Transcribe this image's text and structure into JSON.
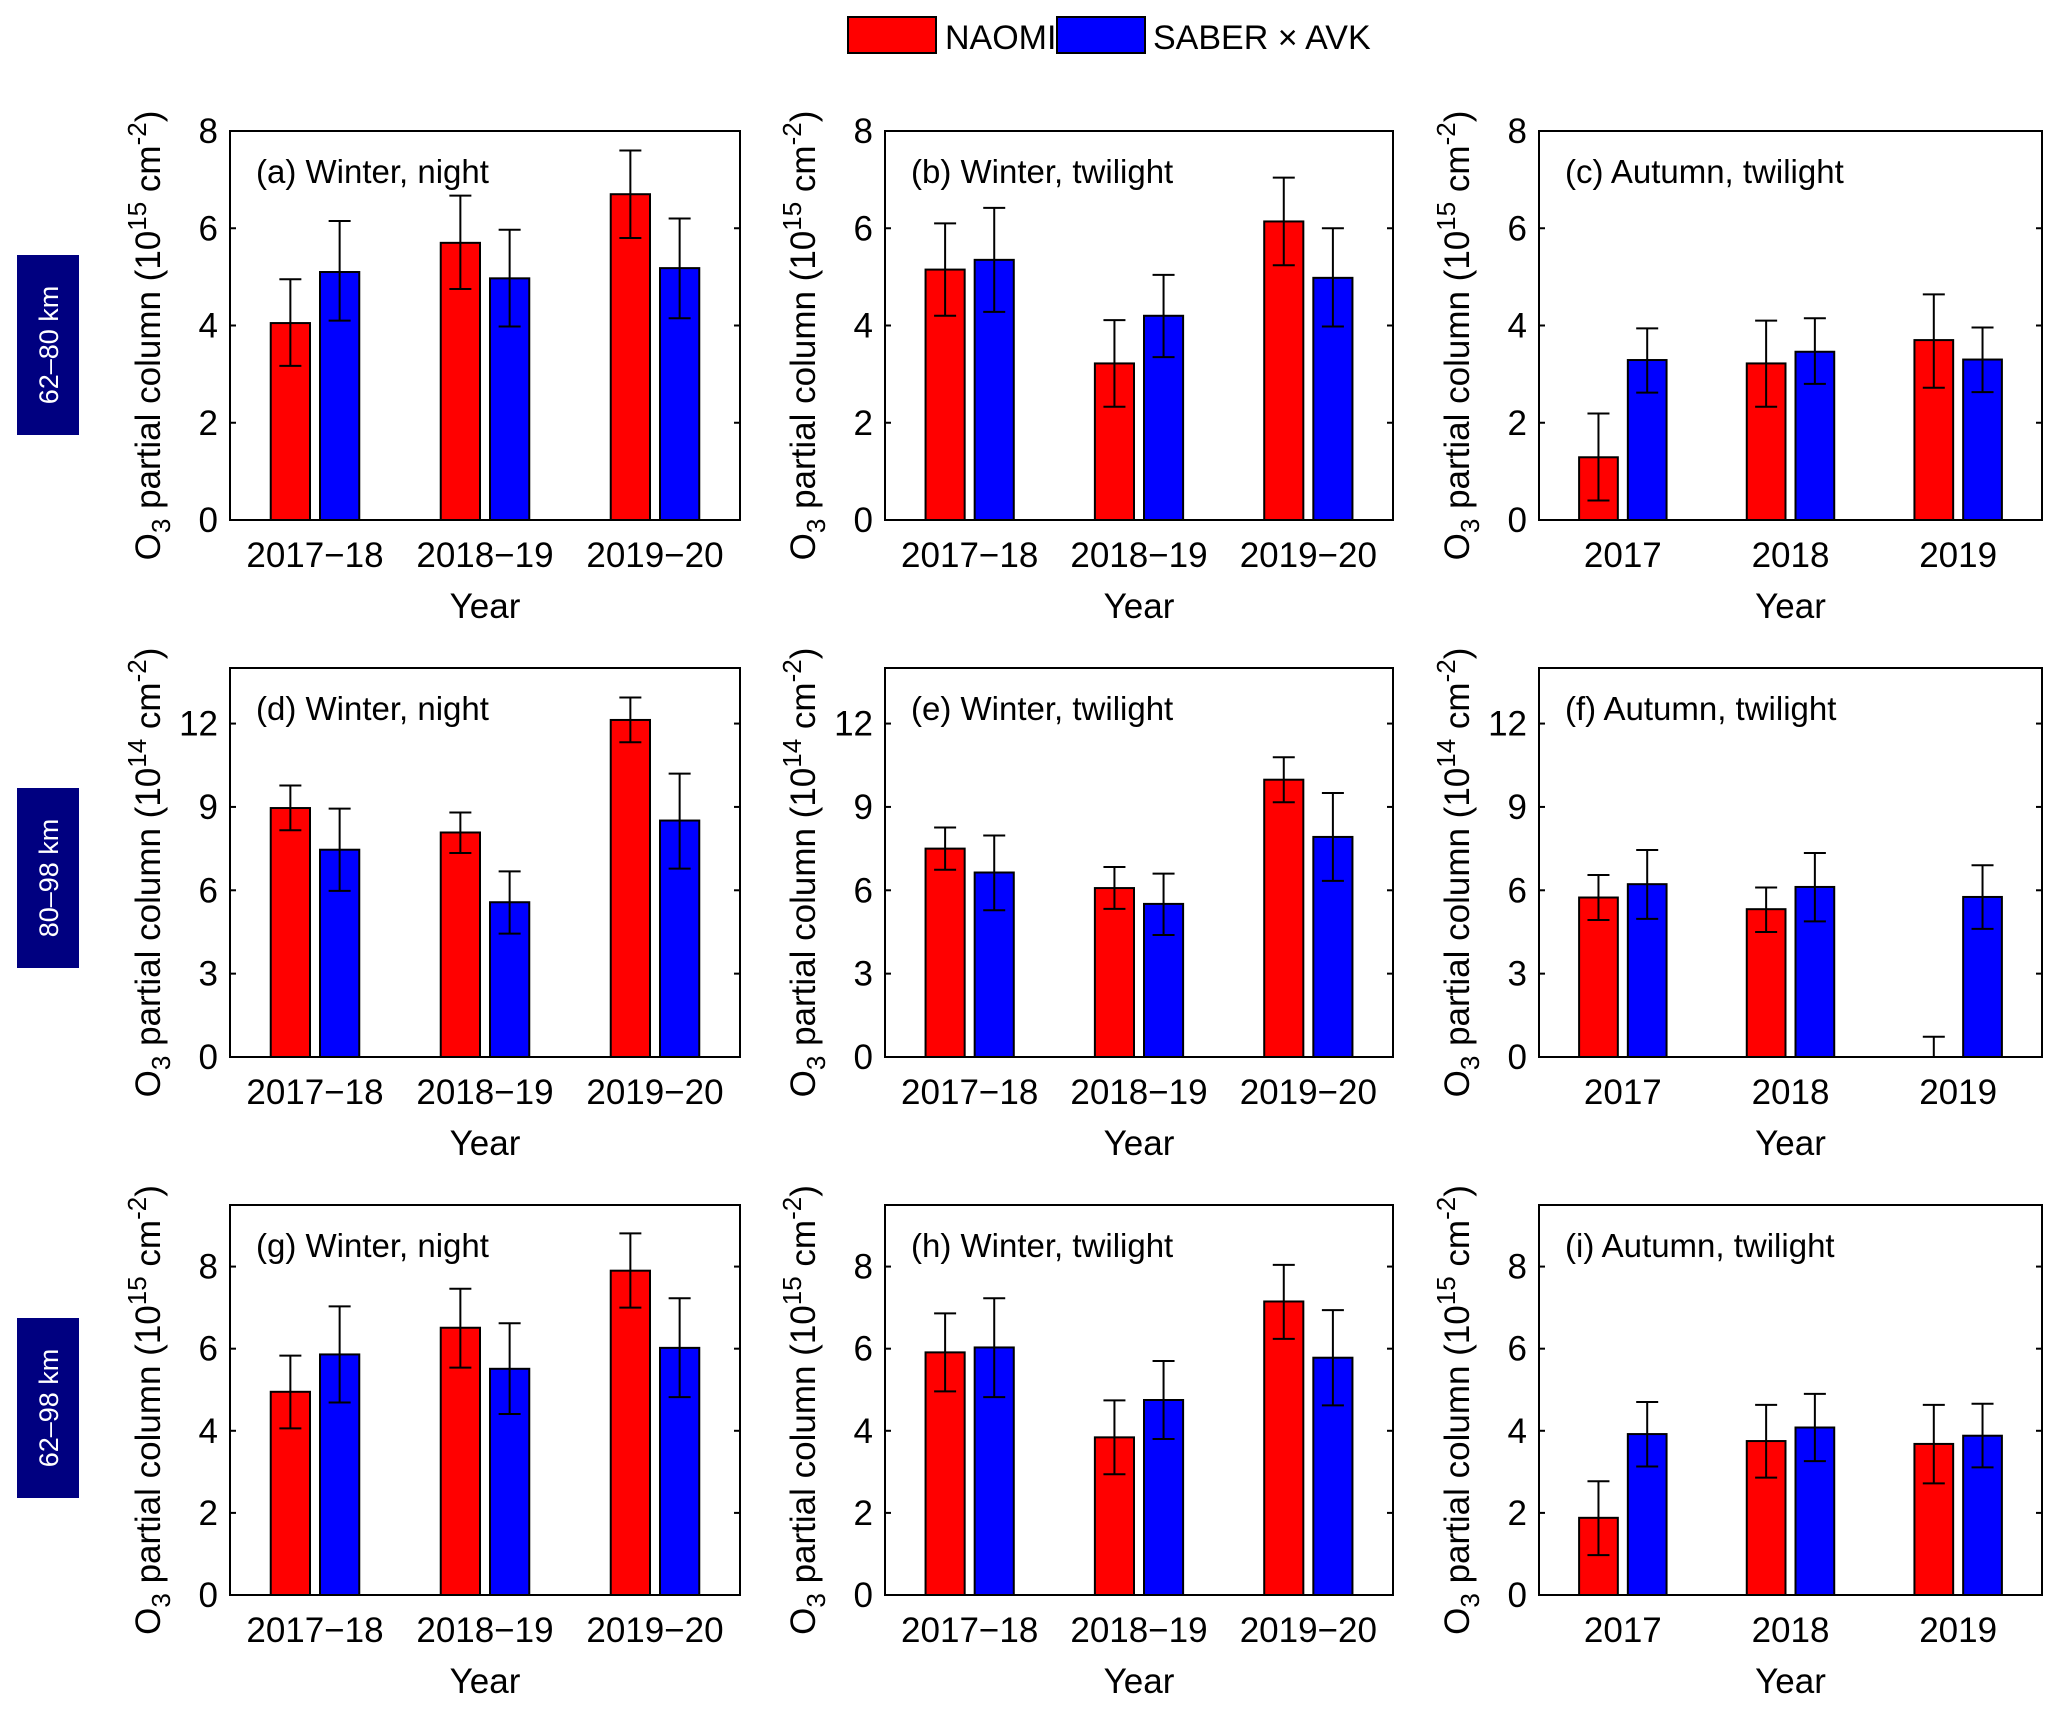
{
  "legend": {
    "items": [
      {
        "name": "NAOMI",
        "color": "#ff0000"
      },
      {
        "name": "SABER × AVK",
        "color": "#0000ff"
      }
    ]
  },
  "row_labels": [
    "62–80 km",
    "80–98 km",
    "62–98 km"
  ],
  "row_label_color": "#000080",
  "chart_data": [
    {
      "type": "bar",
      "id": "a",
      "title": "(a) Winter, night",
      "categories": [
        "2017−18",
        "2018−19",
        "2019−20"
      ],
      "xlabel": "Year",
      "ylabel_prefix": "O",
      "ylabel_sub": "3",
      "ylabel_mid": " partial column (10",
      "ylabel_sup": "15",
      "ylabel_tail": " cm",
      "ylabel_sup2": "-2",
      "ylabel_end": ")",
      "ylim": [
        0,
        8
      ],
      "yticks": [
        0,
        2,
        4,
        6,
        8
      ],
      "legend": "top-center",
      "series": [
        {
          "name": "NAOMI",
          "values": [
            4.05,
            5.7,
            6.7
          ],
          "err_low": [
            3.17,
            4.75,
            5.8
          ],
          "err_high": [
            4.95,
            6.67,
            7.6
          ]
        },
        {
          "name": "SABER × AVK",
          "values": [
            5.1,
            4.97,
            5.18
          ],
          "err_low": [
            4.1,
            3.98,
            4.15
          ],
          "err_high": [
            6.15,
            5.97,
            6.2
          ]
        }
      ]
    },
    {
      "type": "bar",
      "id": "b",
      "title": "(b) Winter, twilight",
      "categories": [
        "2017−18",
        "2018−19",
        "2019−20"
      ],
      "xlabel": "Year",
      "ylabel_prefix": "O",
      "ylabel_sub": "3",
      "ylabel_mid": " partial column (10",
      "ylabel_sup": "15",
      "ylabel_tail": " cm",
      "ylabel_sup2": "-2",
      "ylabel_end": ")",
      "ylim": [
        0,
        8
      ],
      "yticks": [
        0,
        2,
        4,
        6,
        8
      ],
      "series": [
        {
          "name": "NAOMI",
          "values": [
            5.15,
            3.22,
            6.14
          ],
          "err_low": [
            4.2,
            2.33,
            5.24
          ],
          "err_high": [
            6.1,
            4.11,
            7.04
          ]
        },
        {
          "name": "SABER × AVK",
          "values": [
            5.35,
            4.2,
            4.98
          ],
          "err_low": [
            4.28,
            3.35,
            3.98
          ],
          "err_high": [
            6.42,
            5.04,
            6.0
          ]
        }
      ]
    },
    {
      "type": "bar",
      "id": "c",
      "title": "(c) Autumn, twilight",
      "categories": [
        "2017",
        "2018",
        "2019"
      ],
      "xlabel": "Year",
      "ylabel_prefix": "O",
      "ylabel_sub": "3",
      "ylabel_mid": " partial column (10",
      "ylabel_sup": "15",
      "ylabel_tail": " cm",
      "ylabel_sup2": "-2",
      "ylabel_end": ")",
      "ylim": [
        0,
        8
      ],
      "yticks": [
        0,
        2,
        4,
        6,
        8
      ],
      "series": [
        {
          "name": "NAOMI",
          "values": [
            1.29,
            3.22,
            3.7
          ],
          "err_low": [
            0.4,
            2.33,
            2.72
          ],
          "err_high": [
            2.19,
            4.1,
            4.64
          ]
        },
        {
          "name": "SABER × AVK",
          "values": [
            3.29,
            3.46,
            3.3
          ],
          "err_low": [
            2.62,
            2.8,
            2.63
          ],
          "err_high": [
            3.94,
            4.15,
            3.96
          ]
        }
      ]
    },
    {
      "type": "bar",
      "id": "d",
      "title": "(d) Winter, night",
      "categories": [
        "2017−18",
        "2018−19",
        "2019−20"
      ],
      "xlabel": "Year",
      "ylabel_prefix": "O",
      "ylabel_sub": "3",
      "ylabel_mid": " partial column (10",
      "ylabel_sup": "14",
      "ylabel_tail": " cm",
      "ylabel_sup2": "-2",
      "ylabel_end": ")",
      "ylim": [
        0,
        14
      ],
      "yticks": [
        0,
        3,
        6,
        9,
        12
      ],
      "series": [
        {
          "name": "NAOMI",
          "values": [
            8.96,
            8.08,
            12.13
          ],
          "err_low": [
            8.16,
            7.34,
            11.33
          ],
          "err_high": [
            9.77,
            8.8,
            12.94
          ]
        },
        {
          "name": "SABER × AVK",
          "values": [
            7.46,
            5.57,
            8.51
          ],
          "err_low": [
            5.98,
            4.44,
            6.78
          ],
          "err_high": [
            8.94,
            6.68,
            10.2
          ]
        }
      ]
    },
    {
      "type": "bar",
      "id": "e",
      "title": "(e) Winter, twilight",
      "categories": [
        "2017−18",
        "2018−19",
        "2019−20"
      ],
      "xlabel": "Year",
      "ylabel_prefix": "O",
      "ylabel_sub": "3",
      "ylabel_mid": " partial column (10",
      "ylabel_sup": "14",
      "ylabel_tail": " cm",
      "ylabel_sup2": "-2",
      "ylabel_end": ")",
      "ylim": [
        0,
        14
      ],
      "yticks": [
        0,
        3,
        6,
        9,
        12
      ],
      "series": [
        {
          "name": "NAOMI",
          "values": [
            7.5,
            6.08,
            9.98
          ],
          "err_low": [
            6.74,
            5.33,
            9.17
          ],
          "err_high": [
            8.26,
            6.84,
            10.79
          ]
        },
        {
          "name": "SABER × AVK",
          "values": [
            6.64,
            5.51,
            7.92
          ],
          "err_low": [
            5.28,
            4.39,
            6.34
          ],
          "err_high": [
            7.97,
            6.6,
            9.5
          ]
        }
      ]
    },
    {
      "type": "bar",
      "id": "f",
      "title": "(f) Autumn, twilight",
      "categories": [
        "2017",
        "2018",
        "2019"
      ],
      "xlabel": "Year",
      "ylabel_prefix": "O",
      "ylabel_sub": "3",
      "ylabel_mid": " partial column (10",
      "ylabel_sup": "14",
      "ylabel_tail": " cm",
      "ylabel_sup2": "-2",
      "ylabel_end": ")",
      "ylim": [
        0,
        14
      ],
      "yticks": [
        0,
        3,
        6,
        9,
        12
      ],
      "series": [
        {
          "name": "NAOMI",
          "values": [
            5.74,
            5.32,
            0.0
          ],
          "err_low": [
            4.93,
            4.5,
            0.0
          ],
          "err_high": [
            6.55,
            6.1,
            0.73
          ]
        },
        {
          "name": "SABER × AVK",
          "values": [
            6.22,
            6.12,
            5.76
          ],
          "err_low": [
            4.97,
            4.88,
            4.61
          ],
          "err_high": [
            7.45,
            7.34,
            6.9
          ]
        }
      ]
    },
    {
      "type": "bar",
      "id": "g",
      "title": "(g) Winter, night",
      "categories": [
        "2017−18",
        "2018−19",
        "2019−20"
      ],
      "xlabel": "Year",
      "ylabel_prefix": "O",
      "ylabel_sub": "3",
      "ylabel_mid": " partial column (10",
      "ylabel_sup": "15",
      "ylabel_tail": " cm",
      "ylabel_sup2": "-2",
      "ylabel_end": ")",
      "ylim": [
        0,
        9.5
      ],
      "yticks": [
        0,
        2,
        4,
        6,
        8
      ],
      "series": [
        {
          "name": "NAOMI",
          "values": [
            4.95,
            6.51,
            7.9
          ],
          "err_low": [
            4.06,
            5.54,
            7.0
          ],
          "err_high": [
            5.83,
            7.46,
            8.81
          ]
        },
        {
          "name": "SABER × AVK",
          "values": [
            5.86,
            5.51,
            6.02
          ],
          "err_low": [
            4.69,
            4.41,
            4.82
          ],
          "err_high": [
            7.03,
            6.62,
            7.23
          ]
        }
      ]
    },
    {
      "type": "bar",
      "id": "h",
      "title": "(h) Winter, twilight",
      "categories": [
        "2017−18",
        "2018−19",
        "2019−20"
      ],
      "xlabel": "Year",
      "ylabel_prefix": "O",
      "ylabel_sub": "3",
      "ylabel_mid": " partial column (10",
      "ylabel_sup": "15",
      "ylabel_tail": " cm",
      "ylabel_sup2": "-2",
      "ylabel_end": ")",
      "ylim": [
        0,
        9.5
      ],
      "yticks": [
        0,
        2,
        4,
        6,
        8
      ],
      "series": [
        {
          "name": "NAOMI",
          "values": [
            5.91,
            3.84,
            7.15
          ],
          "err_low": [
            4.96,
            2.94,
            6.24
          ],
          "err_high": [
            6.86,
            4.74,
            8.04
          ]
        },
        {
          "name": "SABER × AVK",
          "values": [
            6.03,
            4.75,
            5.78
          ],
          "err_low": [
            4.82,
            3.8,
            4.62
          ],
          "err_high": [
            7.23,
            5.7,
            6.94
          ]
        }
      ]
    },
    {
      "type": "bar",
      "id": "i",
      "title": "(i) Autumn, twilight",
      "categories": [
        "2017",
        "2018",
        "2019"
      ],
      "xlabel": "Year",
      "ylabel_prefix": "O",
      "ylabel_sub": "3",
      "ylabel_mid": " partial column (10",
      "ylabel_sup": "15",
      "ylabel_tail": " cm",
      "ylabel_sup2": "-2",
      "ylabel_end": ")",
      "ylim": [
        0,
        9.5
      ],
      "yticks": [
        0,
        2,
        4,
        6,
        8
      ],
      "series": [
        {
          "name": "NAOMI",
          "values": [
            1.88,
            3.75,
            3.68
          ],
          "err_low": [
            0.97,
            2.86,
            2.72
          ],
          "err_high": [
            2.77,
            4.63,
            4.63
          ]
        },
        {
          "name": "SABER × AVK",
          "values": [
            3.92,
            4.08,
            3.88
          ],
          "err_low": [
            3.13,
            3.26,
            3.11
          ],
          "err_high": [
            4.7,
            4.9,
            4.66
          ]
        }
      ]
    }
  ]
}
